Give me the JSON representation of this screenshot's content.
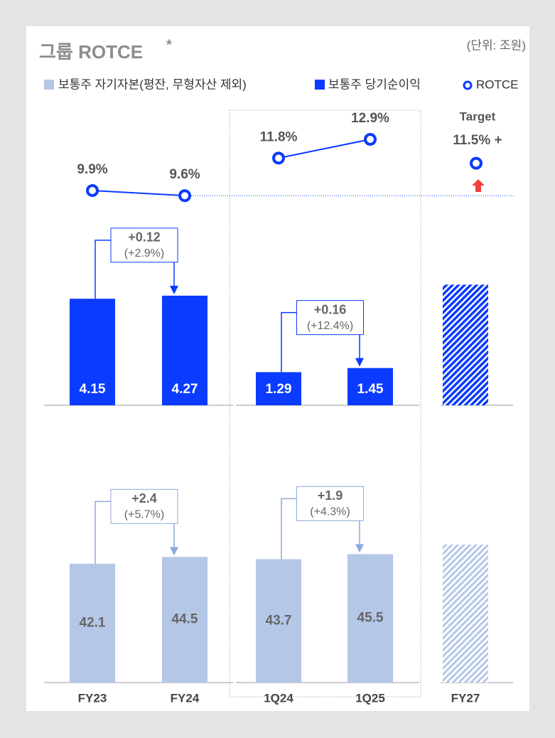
{
  "chart_data": {
    "type": "bar",
    "title": "그룹 ROTCE",
    "title_mark": "*",
    "unit": "(단위: 조원)",
    "categories": [
      "FY23",
      "FY24",
      "1Q24",
      "1Q25",
      "FY27"
    ],
    "series": [
      {
        "name": "보통주 자기자본(평잔, 무형자산 제외)",
        "color": "#b4c7e7",
        "values": [
          42.1,
          44.5,
          43.7,
          45.5,
          null
        ],
        "target": 48.9
      },
      {
        "name": "보통주 당기순이익",
        "color": "#0b3bff",
        "values": [
          4.15,
          4.27,
          1.29,
          1.45,
          null
        ],
        "target": 4.7
      },
      {
        "name": "ROTCE",
        "type": "line",
        "color": "#0b3bff",
        "values": [
          9.9,
          9.6,
          11.8,
          12.9,
          11.5
        ],
        "value_labels": [
          "9.9%",
          "9.6%",
          "11.8%",
          "12.9%",
          "11.5% +"
        ]
      }
    ],
    "target_label": "Target",
    "annotations": [
      {
        "series": 1,
        "from": 0,
        "to": 1,
        "text": "+0.12",
        "sub": "(+2.9%)"
      },
      {
        "series": 1,
        "from": 2,
        "to": 3,
        "text": "+0.16",
        "sub": "(+12.4%)"
      },
      {
        "series": 0,
        "from": 0,
        "to": 1,
        "text": "+2.4",
        "sub": "(+5.7%)"
      },
      {
        "series": 0,
        "from": 2,
        "to": 3,
        "text": "+1.9",
        "sub": "(+4.3%)"
      }
    ]
  }
}
